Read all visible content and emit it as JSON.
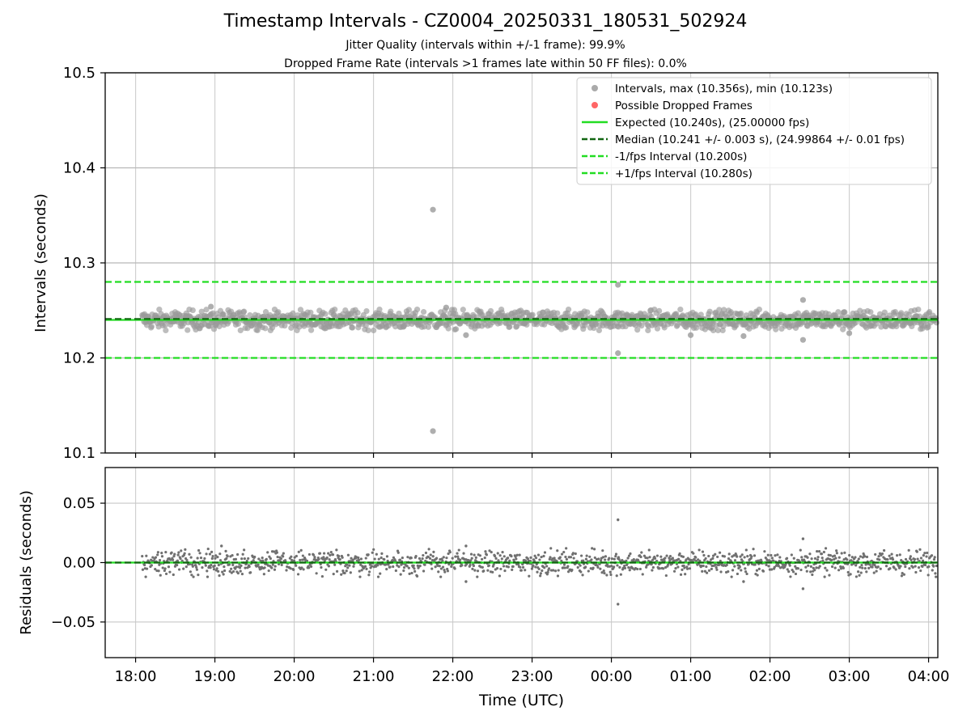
{
  "chart_data": [
    {
      "type": "scatter",
      "title": "Timestamp Intervals - CZ0004_20250331_180531_502924",
      "subtitles": [
        "Jitter Quality (intervals within +/-1 frame): 99.9%",
        "Dropped Frame Rate (intervals >1 frames late within 50 FF files): 0.0%"
      ],
      "ylabel": "Intervals (seconds)",
      "xlabel": "",
      "ylim": [
        10.1,
        10.5
      ],
      "yticks": [
        "10.1",
        "10.2",
        "10.3",
        "10.4",
        "10.5"
      ],
      "grid": true,
      "legend_position": "upper right",
      "series": [
        {
          "name": "Intervals, max (10.356s), min (10.123s)",
          "kind": "scatter",
          "color": "#808080",
          "typical_center": 10.24,
          "typical_spread": 0.005,
          "outliers": [
            {
              "t": "21:45",
              "y": 10.356
            },
            {
              "t": "21:45",
              "y": 10.123
            },
            {
              "t": "00:05",
              "y": 10.277
            },
            {
              "t": "00:05",
              "y": 10.205
            },
            {
              "t": "02:25",
              "y": 10.261
            },
            {
              "t": "02:25",
              "y": 10.219
            },
            {
              "t": "22:10",
              "y": 10.224
            },
            {
              "t": "01:00",
              "y": 10.224
            },
            {
              "t": "01:40",
              "y": 10.223
            },
            {
              "t": "03:00",
              "y": 10.226
            },
            {
              "t": "18:57",
              "y": 10.254
            },
            {
              "t": "21:55",
              "y": 10.253
            }
          ]
        },
        {
          "name": "Possible Dropped Frames",
          "kind": "scatter",
          "color": "#ff6666",
          "points": []
        },
        {
          "name": "Expected (10.240s), (25.00000 fps)",
          "kind": "hline",
          "y": 10.24,
          "color": "#22dd22",
          "style": "solid"
        },
        {
          "name": "Median (10.241 +/- 0.003 s), (24.99864 +/- 0.01 fps)",
          "kind": "hline",
          "y": 10.241,
          "color": "#116611",
          "style": "dashed"
        },
        {
          "name": "-1/fps Interval (10.200s)",
          "kind": "hline",
          "y": 10.2,
          "color": "#22dd22",
          "style": "dashed"
        },
        {
          "name": "+1/fps Interval (10.280s)",
          "kind": "hline",
          "y": 10.28,
          "color": "#22dd22",
          "style": "dashed"
        }
      ]
    },
    {
      "type": "scatter",
      "ylabel": "Residuals (seconds)",
      "xlabel": "Time (UTC)",
      "ylim": [
        -0.08,
        0.08
      ],
      "yticks": [
        "−0.05",
        "0.00",
        "0.05"
      ],
      "ytick_values": [
        -0.05,
        0.0,
        0.05
      ],
      "xlim": [
        "17:37",
        "04:07"
      ],
      "xticks": [
        "18:00",
        "19:00",
        "20:00",
        "21:00",
        "22:00",
        "23:00",
        "00:00",
        "01:00",
        "02:00",
        "03:00",
        "04:00"
      ],
      "grid": true,
      "series": [
        {
          "kind": "scatter",
          "color": "#777777",
          "typical_center": 0.0,
          "typical_spread": 0.005,
          "outliers": [
            {
              "t": "00:05",
              "y": 0.036
            },
            {
              "t": "00:05",
              "y": -0.035
            },
            {
              "t": "02:25",
              "y": 0.02
            },
            {
              "t": "02:25",
              "y": -0.022
            },
            {
              "t": "22:10",
              "y": -0.016
            },
            {
              "t": "22:10",
              "y": 0.014
            },
            {
              "t": "19:05",
              "y": 0.014
            },
            {
              "t": "01:40",
              "y": -0.016
            }
          ]
        },
        {
          "kind": "hline",
          "y": 0.0,
          "color": "#22dd22",
          "style": "solid"
        },
        {
          "kind": "hline",
          "y": 0.0,
          "color": "#116611",
          "style": "dashed"
        }
      ]
    }
  ]
}
